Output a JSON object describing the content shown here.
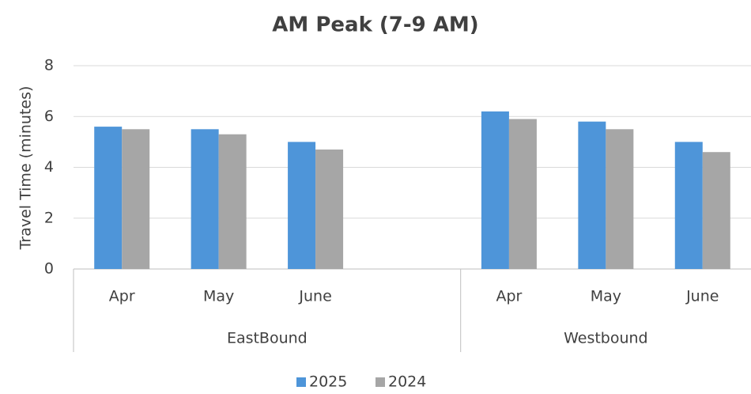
{
  "chart_data": {
    "type": "bar",
    "title": "AM Peak (7-9 AM)",
    "y_label": "Travel Time (minutes)",
    "groups": [
      {
        "name": "EastBound",
        "categories": [
          "Apr",
          "May",
          "June",
          null
        ]
      },
      {
        "name": "Westbound",
        "categories": [
          "Apr",
          "May",
          "June"
        ]
      }
    ],
    "series": [
      {
        "name": "2025",
        "color": "#4e95d9",
        "values": [
          5.6,
          5.5,
          5.0,
          null,
          6.2,
          5.8,
          5.0
        ]
      },
      {
        "name": "2024",
        "color": "#a6a6a6",
        "values": [
          5.5,
          5.3,
          4.7,
          null,
          5.9,
          5.5,
          4.6
        ]
      }
    ],
    "ylim": [
      0,
      8
    ],
    "yticks": [
      0,
      2,
      4,
      6,
      8
    ],
    "grid": true,
    "legend": "bottom"
  }
}
